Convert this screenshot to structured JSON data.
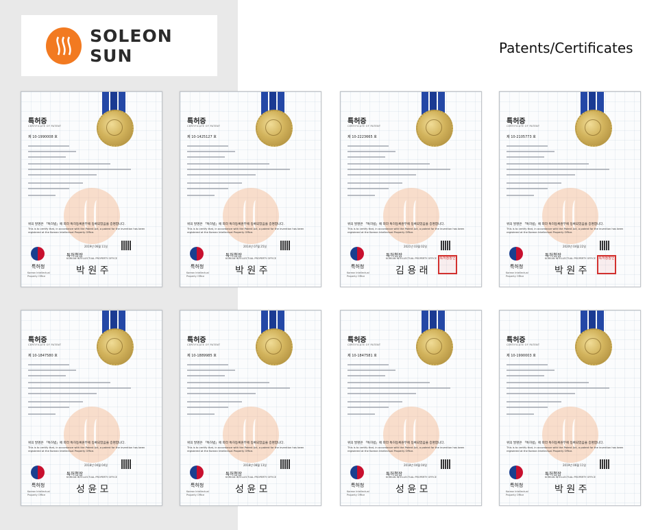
{
  "header": {
    "brand": "SOLEON SUN",
    "page_title": "Patents/Certificates"
  },
  "colors": {
    "brand_orange": "#f27a21",
    "left_panel": "#e9e9e9"
  },
  "certificates": [
    {
      "title": "특허증",
      "subtitle": "CERTIFICATE OF PATENT",
      "patent_no": "제 10-1990008 호",
      "date": "2019년 06월 11일",
      "signature": "박 원 주",
      "stamp": false
    },
    {
      "title": "특허증",
      "subtitle": "CERTIFICATE OF PATENT",
      "patent_no": "제 10-1425127 호",
      "date": "2014년 07월 25일",
      "signature": "박 원 주",
      "stamp": false
    },
    {
      "title": "특허증",
      "subtitle": "CERTIFICATE OF PATENT",
      "patent_no": "제 10-2223665 호",
      "date": "2021년 03월 02일",
      "signature": "김 용 래",
      "stamp": true
    },
    {
      "title": "특허증",
      "subtitle": "CERTIFICATE OF PATENT",
      "patent_no": "제 10-2105773 호",
      "date": "2020년 04월 22일",
      "signature": "박 원 주",
      "stamp": true
    },
    {
      "title": "특허증",
      "subtitle": "CERTIFICATE OF PATENT",
      "patent_no": "제 10-1847580 호",
      "date": "2018년 04월 04일",
      "signature": "성 윤 모",
      "stamp": false
    },
    {
      "title": "특허증",
      "subtitle": "CERTIFICATE OF PATENT",
      "patent_no": "제 10-1889985 호",
      "date": "2018년 08월 13일",
      "signature": "성 윤 모",
      "stamp": false
    },
    {
      "title": "특허증",
      "subtitle": "CERTIFICATE OF PATENT",
      "patent_no": "제 10-1847581 호",
      "date": "2018년 04월 04일",
      "signature": "성 윤 모",
      "stamp": false
    },
    {
      "title": "특허증",
      "subtitle": "CERTIFICATE OF PATENT",
      "patent_no": "제 10-1990003 호",
      "date": "2019년 06월 11일",
      "signature": "박 원 주",
      "stamp": false
    }
  ],
  "common": {
    "ko_statement": "위의 발명은 「특허법」에 따라 특허등록원부에 등록되었음을 증명합니다.",
    "en_statement": "This is to certify that, in accordance with the Patent Act, a patent for the invention has been registered at the Korean Intellectual Property Office.",
    "commissioner_ko": "특허청장",
    "commissioner_en": "KOREAN INTELLECTUAL PROPERTY OFFICE",
    "agency_ko": "특허청",
    "agency_en": "Korean Intellectual Property Office",
    "stamp_text": "특허청장인"
  }
}
